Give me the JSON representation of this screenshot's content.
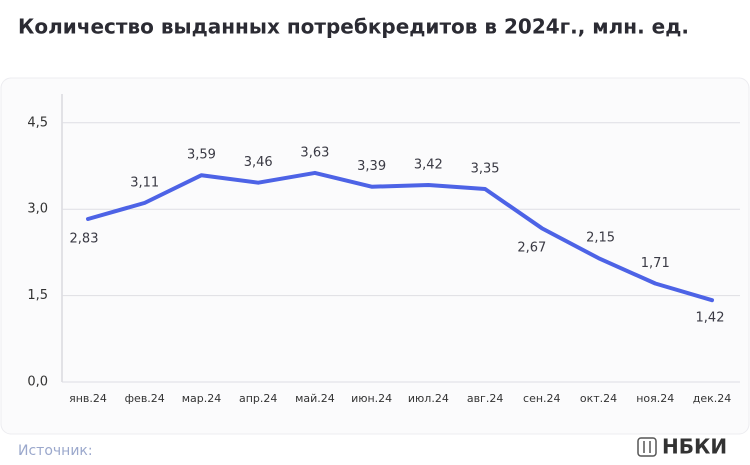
{
  "chart_data": {
    "type": "line",
    "title": "Количество выданных потребкредитов в 2024г., млн. ед.",
    "categories": [
      "янв.24",
      "фев.24",
      "мар.24",
      "апр.24",
      "май.24",
      "июн.24",
      "июл.24",
      "авг.24",
      "сен.24",
      "окт.24",
      "ноя.24",
      "дек.24"
    ],
    "series": [
      {
        "name": "Количество выданных потребкредитов",
        "color": "#4d63e6",
        "values": [
          2.83,
          3.11,
          3.59,
          3.46,
          3.63,
          3.39,
          3.42,
          3.35,
          2.67,
          2.15,
          1.71,
          1.42
        ],
        "value_labels": [
          "2,83",
          "3,11",
          "3,59",
          "3,46",
          "3,63",
          "3,39",
          "3,42",
          "3,35",
          "2,67",
          "2,15",
          "1,71",
          "1,42"
        ]
      }
    ],
    "ylim": [
      0,
      5
    ],
    "yticks": [
      {
        "value": 0,
        "label": "0,0"
      },
      {
        "value": 1.5,
        "label": "1,5"
      },
      {
        "value": 3,
        "label": "3,0"
      },
      {
        "value": 4.5,
        "label": "4,5"
      }
    ],
    "grid": true,
    "source": "Источник:",
    "logo": "НБКИ"
  }
}
